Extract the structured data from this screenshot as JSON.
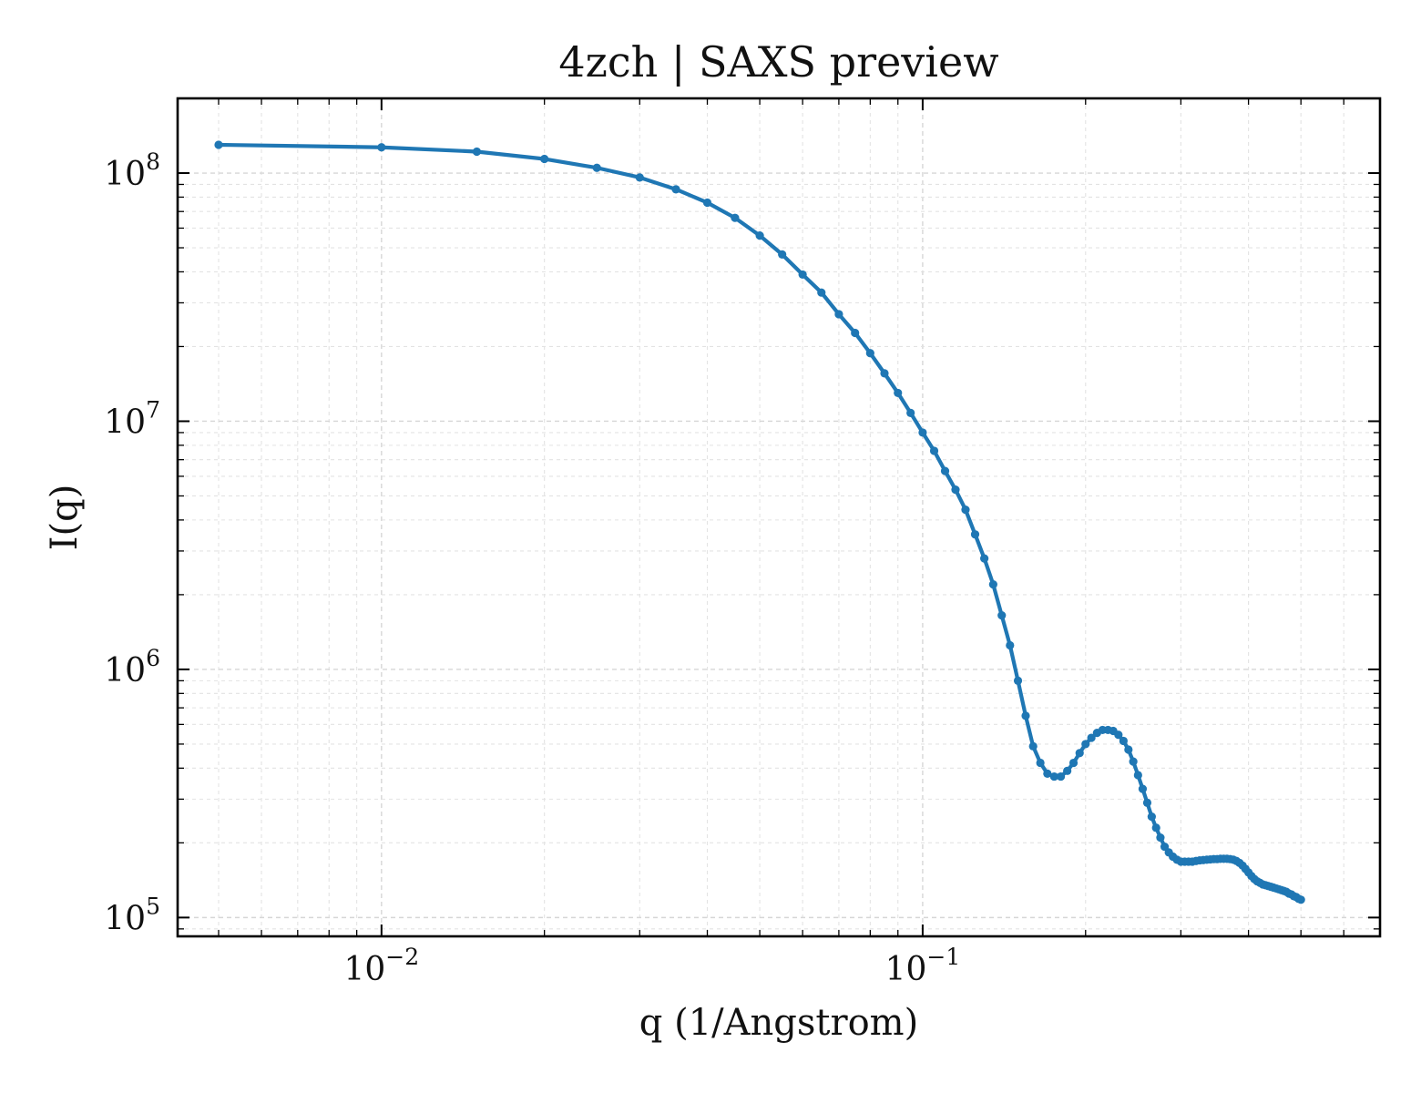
{
  "chart_data": {
    "type": "line",
    "title": "4zch | SAXS preview",
    "xlabel": "q (1/Angstrom)",
    "ylabel": "I(q)",
    "xscale": "log",
    "yscale": "log",
    "xlim": [
      0.0042,
      0.7
    ],
    "ylim": [
      84000,
      200000000
    ],
    "grid": true,
    "legend": "none",
    "x_ticks": [
      {
        "value": 0.01,
        "base": "10",
        "exp": "−2"
      },
      {
        "value": 0.1,
        "base": "10",
        "exp": "−1"
      }
    ],
    "y_ticks": [
      {
        "value": 100000,
        "base": "10",
        "exp": "5"
      },
      {
        "value": 1000000,
        "base": "10",
        "exp": "6"
      },
      {
        "value": 10000000,
        "base": "10",
        "exp": "7"
      },
      {
        "value": 100000000,
        "base": "10",
        "exp": "8"
      }
    ],
    "colors": {
      "series": "#1f77b4",
      "frame": "#000000",
      "grid": "#d6d6d6"
    },
    "series": [
      {
        "x": [
          0.005,
          0.01,
          0.015,
          0.02,
          0.025,
          0.03,
          0.035,
          0.04,
          0.045,
          0.05,
          0.055,
          0.06,
          0.065,
          0.07,
          0.075,
          0.08,
          0.085,
          0.09,
          0.095,
          0.1,
          0.105,
          0.11,
          0.115,
          0.12,
          0.125,
          0.13,
          0.135,
          0.14,
          0.145,
          0.15,
          0.155,
          0.16,
          0.165,
          0.17,
          0.175,
          0.18,
          0.185,
          0.19,
          0.195,
          0.2,
          0.205,
          0.21,
          0.215,
          0.22,
          0.225,
          0.23,
          0.235,
          0.24,
          0.245,
          0.25,
          0.255,
          0.26,
          0.265,
          0.27,
          0.275,
          0.28,
          0.285,
          0.29,
          0.295,
          0.3,
          0.305,
          0.31,
          0.315,
          0.32,
          0.325,
          0.33,
          0.335,
          0.34,
          0.345,
          0.35,
          0.355,
          0.36,
          0.365,
          0.37,
          0.375,
          0.38,
          0.385,
          0.39,
          0.395,
          0.4,
          0.405,
          0.41,
          0.415,
          0.42,
          0.425,
          0.43,
          0.435,
          0.44,
          0.445,
          0.45,
          0.455,
          0.46,
          0.465,
          0.47,
          0.475,
          0.48,
          0.485,
          0.49,
          0.495,
          0.5
        ],
        "y": [
          130000000,
          127000000,
          122000000,
          114000000,
          105000000,
          96000000,
          86000000,
          76000000,
          66000000,
          56000000,
          47000000,
          39000000,
          33000000,
          27000000,
          22700000,
          18800000,
          15600000,
          13000000,
          10800000,
          9000000,
          7600000,
          6300000,
          5300000,
          4400000,
          3500000,
          2800000,
          2200000,
          1650000,
          1250000,
          900000,
          650000,
          490000,
          420000,
          380000,
          370000,
          370000,
          390000,
          420000,
          460000,
          500000,
          530000,
          555000,
          570000,
          570000,
          565000,
          545000,
          515000,
          475000,
          425000,
          375000,
          330000,
          290000,
          255000,
          230000,
          210000,
          193000,
          183000,
          176000,
          171000,
          168000,
          168000,
          168000,
          168000,
          169000,
          170000,
          170500,
          171000,
          171500,
          172000,
          172000,
          172500,
          172500,
          172500,
          172000,
          171000,
          169000,
          166000,
          162000,
          157000,
          152000,
          147000,
          143000,
          140000,
          138000,
          136000,
          135000,
          134000,
          133000,
          132000,
          131000,
          130000,
          129000,
          128000,
          127000,
          125000,
          124000,
          122000,
          121000,
          119000,
          118000
        ]
      }
    ]
  }
}
